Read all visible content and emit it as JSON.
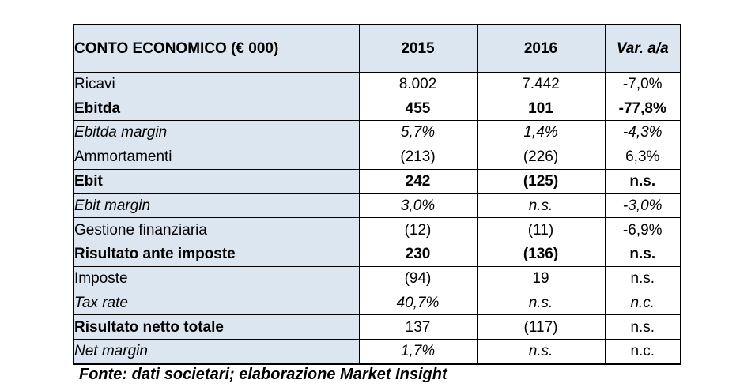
{
  "table": {
    "header": {
      "title": "CONTO ECONOMICO (€ 000)",
      "col_2015": "2015",
      "col_2016": "2016",
      "col_var": "Var. a/a"
    },
    "rows": [
      {
        "label": "Ricavi",
        "label_style": "normal",
        "values": [
          "8.002",
          "7.442",
          "-7,0%"
        ],
        "value_styles": [
          "normal",
          "normal",
          "normal"
        ]
      },
      {
        "label": "Ebitda",
        "label_style": "bold",
        "values": [
          "455",
          "101",
          "-77,8%"
        ],
        "value_styles": [
          "bold",
          "bold",
          "bold"
        ]
      },
      {
        "label": "Ebitda margin",
        "label_style": "italic",
        "values": [
          "5,7%",
          "1,4%",
          "-4,3%"
        ],
        "value_styles": [
          "italic",
          "italic",
          "italic"
        ]
      },
      {
        "label": "Ammortamenti",
        "label_style": "normal",
        "values": [
          "(213)",
          "(226)",
          "6,3%"
        ],
        "value_styles": [
          "normal",
          "normal",
          "normal"
        ]
      },
      {
        "label": "Ebit",
        "label_style": "bold",
        "values": [
          "242",
          "(125)",
          "n.s."
        ],
        "value_styles": [
          "bold",
          "bold",
          "bold"
        ]
      },
      {
        "label": "Ebit margin",
        "label_style": "italic",
        "values": [
          "3,0%",
          "n.s.",
          "-3,0%"
        ],
        "value_styles": [
          "italic",
          "italic",
          "italic"
        ]
      },
      {
        "label": "Gestione finanziaria",
        "label_style": "normal",
        "values": [
          "(12)",
          "(11)",
          "-6,9%"
        ],
        "value_styles": [
          "normal",
          "normal",
          "normal"
        ]
      },
      {
        "label": "Risultato ante imposte",
        "label_style": "bold",
        "values": [
          "230",
          "(136)",
          "n.s."
        ],
        "value_styles": [
          "bold",
          "bold",
          "bold"
        ]
      },
      {
        "label": "Imposte",
        "label_style": "normal",
        "values": [
          "(94)",
          "19",
          "n.s."
        ],
        "value_styles": [
          "normal",
          "normal",
          "normal"
        ]
      },
      {
        "label": "Tax rate",
        "label_style": "italic",
        "values": [
          "40,7%",
          "n.s.",
          "n.c."
        ],
        "value_styles": [
          "italic",
          "italic",
          "italic"
        ]
      },
      {
        "label": "Risultato netto totale",
        "label_style": "bold",
        "values": [
          "137",
          "(117)",
          "n.s."
        ],
        "value_styles": [
          "normal",
          "normal",
          "normal"
        ]
      },
      {
        "label": "Net margin",
        "label_style": "italic",
        "values": [
          "1,7%",
          "n.s.",
          "n.c."
        ],
        "value_styles": [
          "italic",
          "italic",
          "normal"
        ]
      }
    ]
  },
  "footer": {
    "source_note": "Fonte: dati societari; elaborazione Market Insight"
  },
  "colors": {
    "header_bg": "#dce6f1",
    "label_column_bg": "#dce6f1",
    "value_cell_bg": "#ffffff",
    "border": "#000000",
    "text": "#000000",
    "page_bg": "#ffffff"
  }
}
